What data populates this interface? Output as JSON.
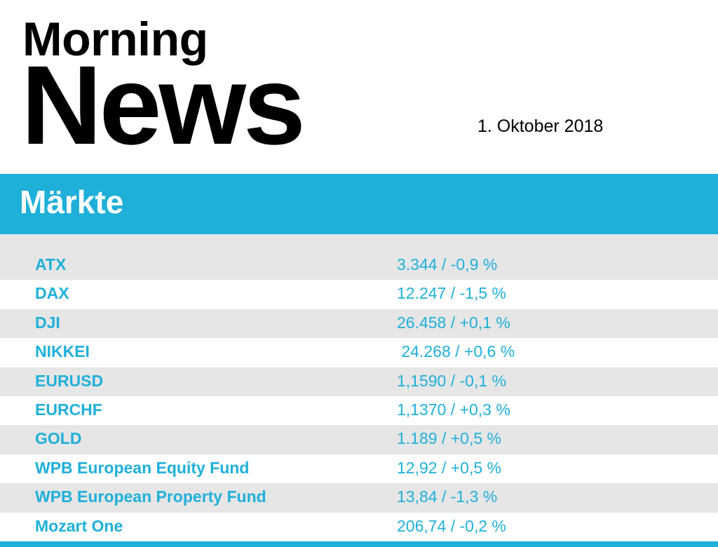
{
  "header": {
    "title_line1": "Morning",
    "title_line2": "News",
    "date": "1. Oktober 2018"
  },
  "section": {
    "title": "Märkte"
  },
  "markets": [
    {
      "name": "ATX",
      "value": "3.344 / -0,9 %"
    },
    {
      "name": "DAX",
      "value": "12.247 / -1,5 %"
    },
    {
      "name": "DJI",
      "value": "26.458 / +0,1 %"
    },
    {
      "name": "NIKKEI",
      "value": " 24.268 / +0,6 %"
    },
    {
      "name": "EURUSD",
      "value": "1,1590 / -0,1 %"
    },
    {
      "name": "EURCHF",
      "value": "1,1370 / +0,3 %"
    },
    {
      "name": "GOLD",
      "value": "1.189 / +0,5 %"
    },
    {
      "name": "WPB European Equity Fund",
      "value": "12,92 / +0,5 %"
    },
    {
      "name": "WPB European Property Fund",
      "value": "13,84 / -1,3 %"
    },
    {
      "name": "Mozart One",
      "value": "206,74 / -0,2 %"
    }
  ],
  "colors": {
    "accent": "#1fb0da",
    "row_shade": "#e6e6e6",
    "text_dark": "#000000"
  }
}
